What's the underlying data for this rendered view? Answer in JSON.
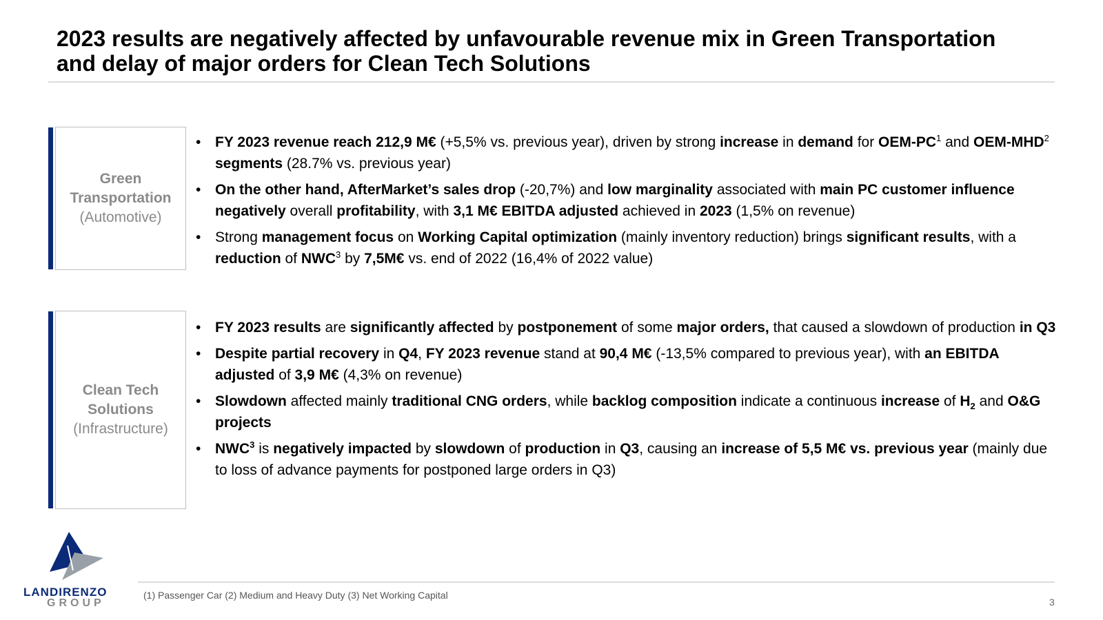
{
  "title": {
    "line1": "2023 results are negatively affected by unfavourable revenue mix in Green Transportation",
    "line2": "and delay of major orders for Clean Tech Solutions"
  },
  "segments": {
    "green": {
      "name_line1": "Green",
      "name_line2": "Transportation",
      "sub": "(Automotive)"
    },
    "clean": {
      "name_line1": "Clean Tech",
      "name_line2": "Solutions",
      "sub": "(Infrastructure)"
    }
  },
  "green_bullets": {
    "b1": {
      "t1": "FY 2023 revenue reach 212,9 M€",
      "t2": " (+5,5% vs. previous year), driven by strong ",
      "t3": "increase",
      "t4": " in ",
      "t5": "demand",
      "t6": " for ",
      "t7": "OEM-PC",
      "sup1": "1",
      "t8": " and ",
      "t9": "OEM-MHD",
      "sup2": "2",
      "t10": " segments",
      "t11": " (28.7% vs. previous year)"
    },
    "b2": {
      "t1": "On the other hand, AfterMarket’s sales drop",
      "t2": " (-20,7%) and ",
      "t3": "low marginality",
      "t4": " associated with ",
      "t5": "main PC customer influence negatively",
      "t6": " overall ",
      "t7": "profitability",
      "t8": ", with ",
      "t9": "3,1 M€ EBITDA adjusted",
      "t10": " achieved in ",
      "t11": "2023",
      "t12": " (1,5% on revenue)"
    },
    "b3": {
      "t1": "Strong ",
      "t2": "management focus",
      "t3": " on ",
      "t4": "Working Capital optimization",
      "t5": " (mainly inventory reduction) brings ",
      "t6": "significant results",
      "t7": ", with a ",
      "t8": "reduction",
      "t9": " of ",
      "t10": "NWC",
      "sup": "3",
      "t11": " by ",
      "t12": "7,5M€",
      "t13": " vs. end of 2022 (16,4% of 2022 value)"
    }
  },
  "clean_bullets": {
    "b1": {
      "t1": "FY 2023 results",
      "t2": " are ",
      "t3": "significantly affected",
      "t4": " by ",
      "t5": "postponement",
      "t6": " of some ",
      "t7": "major orders,",
      "t8": " that caused a slowdown of production ",
      "t9": "in Q3"
    },
    "b2": {
      "t1": "Despite partial recovery",
      "t2": " in ",
      "t3": "Q4",
      "t4": ", ",
      "t5": "FY 2023 revenue",
      "t6": " stand at ",
      "t7": "90,4 M€",
      "t8": " (-13,5% compared to previous year), with ",
      "t9": "an EBITDA adjusted",
      "t10": " of ",
      "t11": "3,9 M€",
      "t12": " (4,3% on revenue)"
    },
    "b3": {
      "t1": "Slowdown",
      "t2": " affected mainly ",
      "t3": "traditional CNG orders",
      "t4": ", while ",
      "t5": "backlog composition",
      "t6": " indicate a continuous ",
      "t7": "increase",
      "t8": " of ",
      "t9": "H",
      "sub": "2",
      "t10": " and ",
      "t11": "O&G projects"
    },
    "b4": {
      "t1": "NWC",
      "sup": "3",
      "t2": " is ",
      "t3": "negatively impacted",
      "t4": " by ",
      "t5": "slowdown",
      "t6": " of ",
      "t7": "production",
      "t8": " in ",
      "t9": "Q3",
      "t10": ", causing an ",
      "t11": "increase of 5,5 M€ vs. previous year",
      "t12": " (mainly due to loss of advance payments for postponed large orders in Q3)"
    }
  },
  "footnote": "(1) Passenger Car  (2) Medium and Heavy Duty  (3) Net Working Capital",
  "page_number": "3",
  "logo": {
    "name": "LANDIRENZO",
    "group": "GROUP",
    "brand_color": "#0b2a78"
  }
}
